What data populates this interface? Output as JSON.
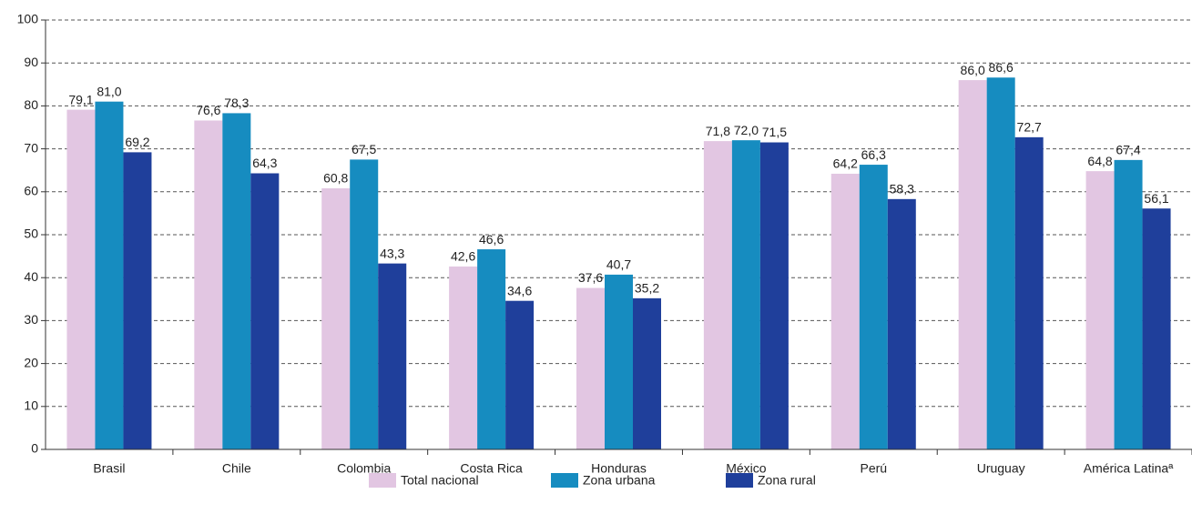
{
  "chart_data": {
    "type": "bar",
    "categories": [
      "Brasil",
      "Chile",
      "Colombia",
      "Costa Rica",
      "Honduras",
      "México",
      "Perú",
      "Uruguay",
      "América Latinaª"
    ],
    "series": [
      {
        "name": "Total nacional",
        "color": "#e2c6e2",
        "values": [
          79.1,
          76.6,
          60.8,
          42.6,
          37.6,
          71.8,
          64.2,
          86.0,
          64.8
        ],
        "value_labels": [
          "79,1",
          "76,6",
          "60,8",
          "42,6",
          "37,6",
          "71,8",
          "64,2",
          "86,0",
          "64,8"
        ]
      },
      {
        "name": "Zona urbana",
        "color": "#168cc0",
        "values": [
          81.0,
          78.3,
          67.5,
          46.6,
          40.7,
          72.0,
          66.3,
          86.6,
          67.4
        ],
        "value_labels": [
          "81,0",
          "78,3",
          "67,5",
          "46,6",
          "40,7",
          "72,0",
          "66,3",
          "86,6",
          "67,4"
        ]
      },
      {
        "name": "Zona rural",
        "color": "#1f3f9b",
        "values": [
          69.2,
          64.3,
          43.3,
          34.6,
          35.2,
          71.5,
          58.3,
          72.7,
          56.1
        ],
        "value_labels": [
          "69,2",
          "64,3",
          "43,3",
          "34,6",
          "35,2",
          "71,5",
          "58,3",
          "72,7",
          "56,1"
        ]
      }
    ],
    "ylim": [
      0,
      100
    ],
    "yticks": [
      0,
      10,
      20,
      30,
      40,
      50,
      60,
      70,
      80,
      90,
      100
    ],
    "grid": true
  }
}
